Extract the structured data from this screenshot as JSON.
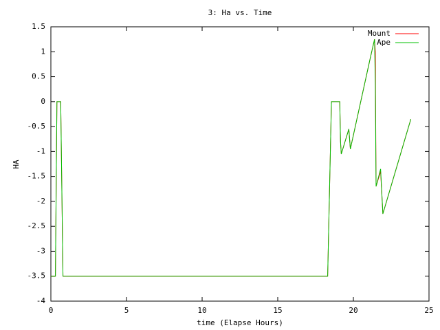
{
  "chart_data": {
    "type": "line",
    "title": "3: Ha vs. Time",
    "x_label": "time (Elapse Hours)",
    "y_label": "HA",
    "x": [
      0,
      0.3,
      0.4,
      0.65,
      0.8,
      18.3,
      18.55,
      19.1,
      19.15,
      19.2,
      19.7,
      19.8,
      21.1,
      21.4,
      21.45,
      21.5,
      21.8,
      21.95,
      23.8
    ],
    "series": [
      {
        "name": "Mount",
        "color": "#ff0000",
        "values": [
          -3.5,
          -3.5,
          0,
          0,
          -3.5,
          -3.5,
          0,
          0,
          -0.8,
          -1.05,
          -0.55,
          -0.95,
          0.85,
          1.25,
          1.0,
          -1.7,
          -1.4,
          -2.25,
          -0.35
        ]
      },
      {
        "name": "Ape",
        "color": "#00c000",
        "values": [
          -3.5,
          -3.5,
          0,
          0,
          -3.5,
          -3.5,
          0,
          0,
          -0.8,
          -1.05,
          -0.55,
          -0.95,
          0.85,
          1.25,
          0.35,
          -1.7,
          -1.35,
          -2.25,
          -0.35
        ]
      }
    ],
    "xlim": [
      0,
      25
    ],
    "xticks": [
      0,
      5,
      10,
      15,
      20,
      25
    ],
    "ylim": [
      -4,
      1.5
    ],
    "yticks": [
      -4,
      -3.5,
      -3,
      -2.5,
      -2,
      -1.5,
      -1,
      -0.5,
      0,
      0.5,
      1,
      1.5
    ],
    "legend": "top-right"
  }
}
